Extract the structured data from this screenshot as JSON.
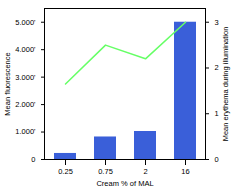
{
  "chart_data": {
    "type": "bar",
    "xlabel": "Cream % of MAL",
    "ylabel": "Mean fluorescence",
    "y2label": "Mean erythema during illumination",
    "categories": [
      "0.25",
      "0.75",
      "2",
      "16"
    ],
    "series": [
      {
        "type": "bar",
        "color": "#3a5fd9",
        "values": [
          220,
          820,
          1020,
          5000
        ]
      },
      {
        "type": "line",
        "color": "#66ff66",
        "axis": "y2",
        "values": [
          1.65,
          2.5,
          2.2,
          3.0
        ]
      }
    ],
    "ylim": [
      0,
      5500
    ],
    "yticks": [
      0,
      {
        "value": 1000,
        "label": "1.000'"
      },
      {
        "value": 2000,
        "label": "2.000'"
      },
      {
        "value": 3000,
        "label": "3.000'"
      },
      {
        "value": 4000,
        "label": "4.000'"
      },
      {
        "value": 5000,
        "label": "5.000'"
      }
    ],
    "y2lim": [
      0,
      3.3
    ],
    "y2ticks": [
      0,
      1,
      2,
      3
    ],
    "grid": false
  }
}
